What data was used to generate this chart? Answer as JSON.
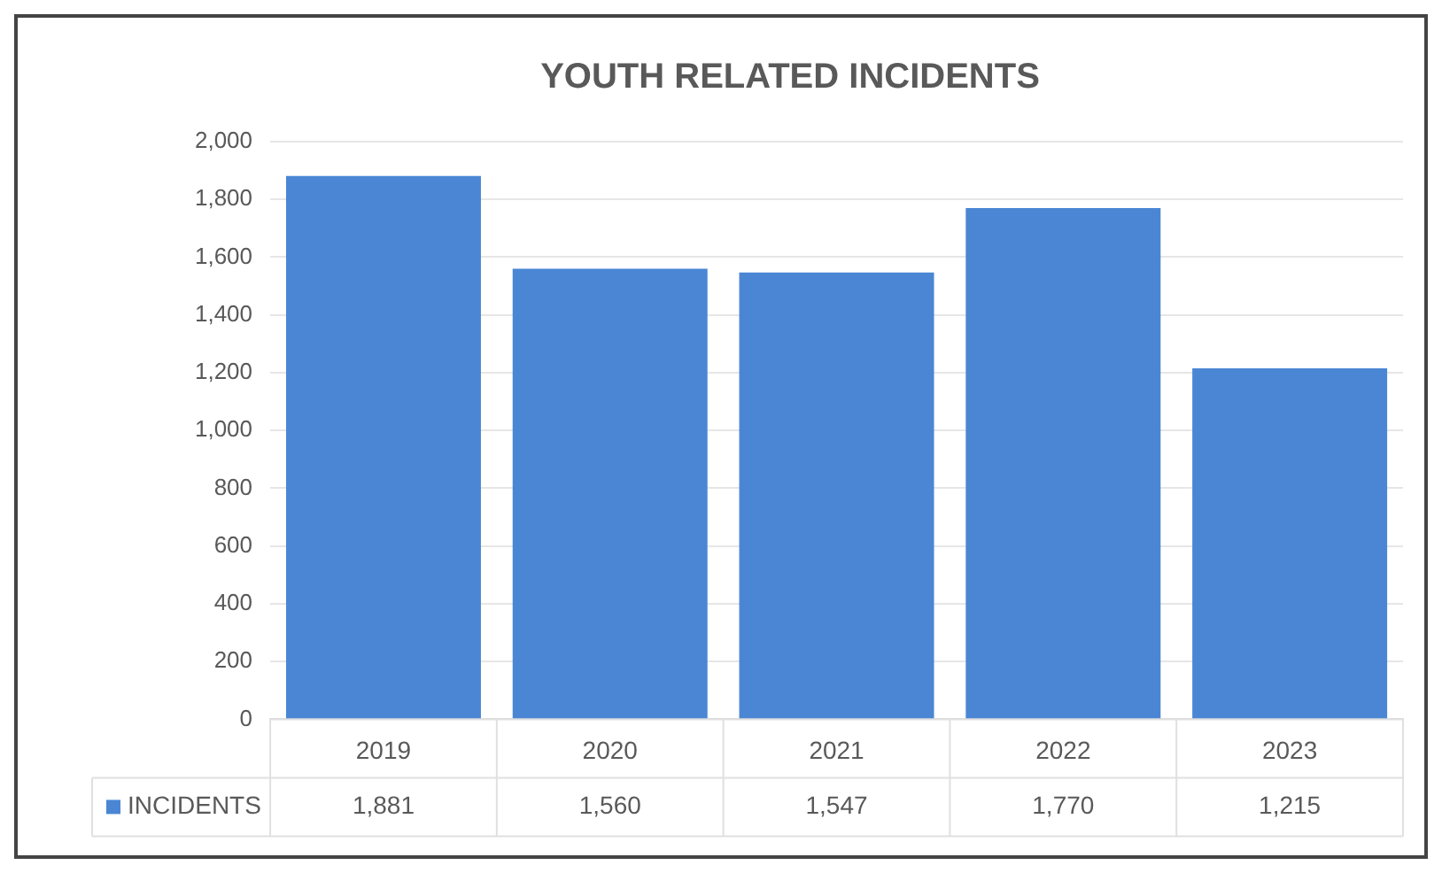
{
  "chart_data": {
    "type": "bar",
    "title": "YOUTH RELATED INCIDENTS",
    "categories": [
      "2019",
      "2020",
      "2021",
      "2022",
      "2023"
    ],
    "series": [
      {
        "name": "INCIDENTS",
        "color": "#4a86d4",
        "values": [
          1881,
          1560,
          1547,
          1770,
          1215
        ],
        "value_labels": [
          "1,881",
          "1,560",
          "1,547",
          "1,770",
          "1,215"
        ]
      }
    ],
    "ylim": [
      0,
      2000
    ],
    "yticks": [
      0,
      200,
      400,
      600,
      800,
      {
        "value": 1000,
        "label": "1,000"
      },
      {
        "value": 1200,
        "label": "1,200"
      },
      {
        "value": 1400,
        "label": "1,400"
      },
      {
        "value": 1600,
        "label": "1,600"
      },
      {
        "value": 1800,
        "label": "1,800"
      },
      {
        "value": 2000,
        "label": "2,000"
      }
    ],
    "grid": "y",
    "legend": "bottom"
  }
}
